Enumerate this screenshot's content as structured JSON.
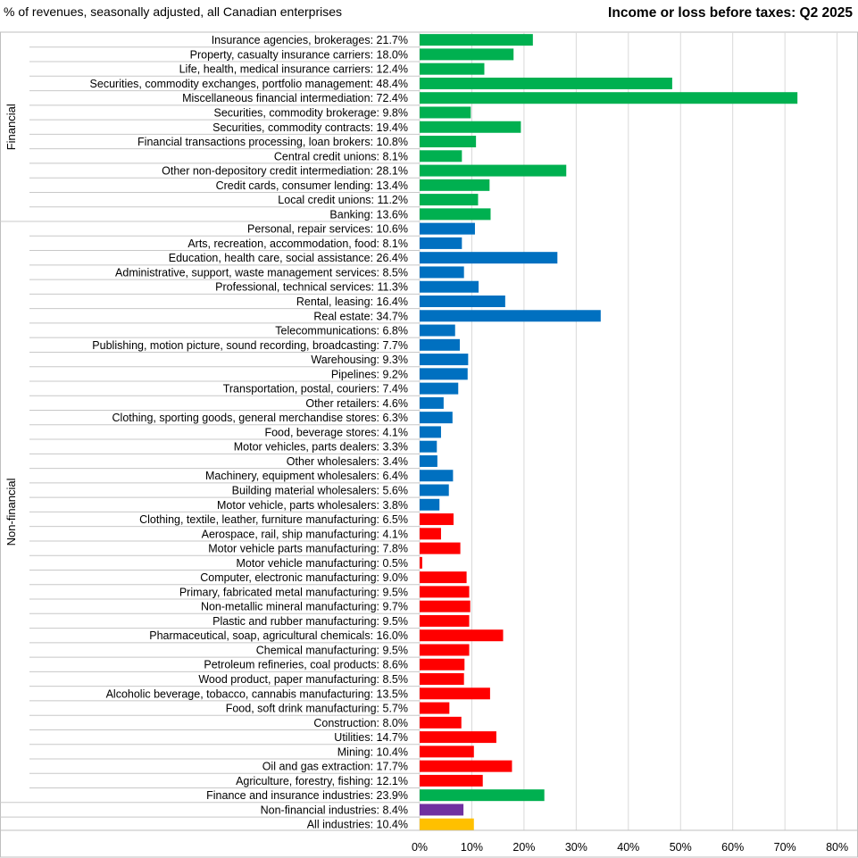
{
  "chart_data": {
    "type": "bar",
    "orientation": "horizontal",
    "title": "Income or loss before taxes: Q2 2025",
    "subtitle": "% of revenues, seasonally adjusted, all Canadian enterprises",
    "xlim": [
      0,
      80
    ],
    "xticks": [
      0,
      10,
      20,
      30,
      40,
      50,
      60,
      70,
      80
    ],
    "xtick_suffix": "%",
    "grid": "vertical",
    "groups": [
      {
        "name": "Financial",
        "start": 0,
        "end": 12
      },
      {
        "name": "Non-financial",
        "start": 13,
        "end": 52
      }
    ],
    "colors": {
      "financial": "#00b050",
      "services": "#0070c0",
      "goods": "#ff0000",
      "nonfinancial_total": "#7030a0",
      "all": "#ffc000"
    },
    "series": [
      {
        "label": "Insurance agencies, brokerages",
        "value": 21.7,
        "display": "21.7%",
        "color": "financial"
      },
      {
        "label": "Property, casualty insurance carriers",
        "value": 18.0,
        "display": "18.0%",
        "color": "financial"
      },
      {
        "label": "Life, health, medical insurance carriers",
        "value": 12.4,
        "display": "12.4%",
        "color": "financial"
      },
      {
        "label": "Securities, commodity exchanges, portfolio management",
        "value": 48.4,
        "display": "48.4%",
        "color": "financial"
      },
      {
        "label": "Miscellaneous financial intermediation",
        "value": 72.4,
        "display": "72.4%",
        "color": "financial"
      },
      {
        "label": "Securities, commodity brokerage",
        "value": 9.8,
        "display": "9.8%",
        "color": "financial"
      },
      {
        "label": "Securities, commodity contracts",
        "value": 19.4,
        "display": "19.4%",
        "color": "financial"
      },
      {
        "label": "Financial transactions processing, loan brokers",
        "value": 10.8,
        "display": "10.8%",
        "color": "financial"
      },
      {
        "label": "Central credit unions",
        "value": 8.1,
        "display": "8.1%",
        "color": "financial"
      },
      {
        "label": "Other non-depository credit intermediation",
        "value": 28.1,
        "display": "28.1%",
        "color": "financial"
      },
      {
        "label": "Credit cards, consumer lending",
        "value": 13.4,
        "display": "13.4%",
        "color": "financial"
      },
      {
        "label": "Local credit unions",
        "value": 11.2,
        "display": "11.2%",
        "color": "financial"
      },
      {
        "label": "Banking",
        "value": 13.6,
        "display": "13.6%",
        "color": "financial"
      },
      {
        "label": "Personal, repair services",
        "value": 10.6,
        "display": "10.6%",
        "color": "services"
      },
      {
        "label": "Arts, recreation, accommodation, food",
        "value": 8.1,
        "display": "8.1%",
        "color": "services"
      },
      {
        "label": "Education, health care, social assistance",
        "value": 26.4,
        "display": "26.4%",
        "color": "services"
      },
      {
        "label": "Administrative, support, waste management services",
        "value": 8.5,
        "display": "8.5%",
        "color": "services"
      },
      {
        "label": "Professional, technical services",
        "value": 11.3,
        "display": "11.3%",
        "color": "services"
      },
      {
        "label": "Rental, leasing",
        "value": 16.4,
        "display": "16.4%",
        "color": "services"
      },
      {
        "label": "Real estate",
        "value": 34.7,
        "display": "34.7%",
        "color": "services"
      },
      {
        "label": "Telecommunications",
        "value": 6.8,
        "display": "6.8%",
        "color": "services"
      },
      {
        "label": "Publishing, motion picture, sound recording, broadcasting",
        "value": 7.7,
        "display": "7.7%",
        "color": "services"
      },
      {
        "label": "Warehousing",
        "value": 9.3,
        "display": "9.3%",
        "color": "services"
      },
      {
        "label": "Pipelines",
        "value": 9.2,
        "display": "9.2%",
        "color": "services"
      },
      {
        "label": "Transportation, postal, couriers",
        "value": 7.4,
        "display": "7.4%",
        "color": "services"
      },
      {
        "label": "Other retailers",
        "value": 4.6,
        "display": "4.6%",
        "color": "services"
      },
      {
        "label": "Clothing, sporting goods, general merchandise stores",
        "value": 6.3,
        "display": "6.3%",
        "color": "services"
      },
      {
        "label": "Food, beverage stores",
        "value": 4.1,
        "display": "4.1%",
        "color": "services"
      },
      {
        "label": "Motor vehicles, parts dealers",
        "value": 3.3,
        "display": "3.3%",
        "color": "services"
      },
      {
        "label": "Other wholesalers",
        "value": 3.4,
        "display": "3.4%",
        "color": "services"
      },
      {
        "label": "Machinery, equipment wholesalers",
        "value": 6.4,
        "display": "6.4%",
        "color": "services"
      },
      {
        "label": "Building material wholesalers",
        "value": 5.6,
        "display": "5.6%",
        "color": "services"
      },
      {
        "label": "Motor vehicle, parts wholesalers",
        "value": 3.8,
        "display": "3.8%",
        "color": "services"
      },
      {
        "label": "Clothing, textile, leather, furniture manufacturing",
        "value": 6.5,
        "display": "6.5%",
        "color": "goods"
      },
      {
        "label": "Aerospace, rail, ship manufacturing",
        "value": 4.1,
        "display": "4.1%",
        "color": "goods"
      },
      {
        "label": "Motor vehicle parts manufacturing",
        "value": 7.8,
        "display": "7.8%",
        "color": "goods"
      },
      {
        "label": "Motor vehicle manufacturing",
        "value": 0.5,
        "display": "0.5%",
        "color": "goods"
      },
      {
        "label": "Computer, electronic manufacturing",
        "value": 9.0,
        "display": "9.0%",
        "color": "goods"
      },
      {
        "label": "Primary, fabricated metal manufacturing",
        "value": 9.5,
        "display": "9.5%",
        "color": "goods"
      },
      {
        "label": "Non-metallic mineral manufacturing",
        "value": 9.7,
        "display": "9.7%",
        "color": "goods"
      },
      {
        "label": "Plastic and rubber manufacturing",
        "value": 9.5,
        "display": "9.5%",
        "color": "goods"
      },
      {
        "label": "Pharmaceutical, soap, agricultural chemicals",
        "value": 16.0,
        "display": "16.0%",
        "color": "goods"
      },
      {
        "label": "Chemical manufacturing",
        "value": 9.5,
        "display": "9.5%",
        "color": "goods"
      },
      {
        "label": "Petroleum refineries, coal products",
        "value": 8.6,
        "display": "8.6%",
        "color": "goods"
      },
      {
        "label": "Wood product, paper manufacturing",
        "value": 8.5,
        "display": "8.5%",
        "color": "goods"
      },
      {
        "label": "Alcoholic beverage, tobacco, cannabis manufacturing",
        "value": 13.5,
        "display": "13.5%",
        "color": "goods"
      },
      {
        "label": "Food, soft drink manufacturing",
        "value": 5.7,
        "display": "5.7%",
        "color": "goods"
      },
      {
        "label": "Construction",
        "value": 8.0,
        "display": "8.0%",
        "color": "goods"
      },
      {
        "label": "Utilities",
        "value": 14.7,
        "display": "14.7%",
        "color": "goods"
      },
      {
        "label": "Mining",
        "value": 10.4,
        "display": "10.4%",
        "color": "goods"
      },
      {
        "label": "Oil and gas extraction",
        "value": 17.7,
        "display": "17.7%",
        "color": "goods"
      },
      {
        "label": "Agriculture, forestry, fishing",
        "value": 12.1,
        "display": "12.1%",
        "color": "goods"
      },
      {
        "label": "Finance and insurance industries",
        "value": 23.9,
        "display": "23.9%",
        "color": "financial"
      },
      {
        "label": "Non-financial industries",
        "value": 8.4,
        "display": "8.4%",
        "color": "nonfinancial_total"
      },
      {
        "label": "All industries",
        "value": 10.4,
        "display": "10.4%",
        "color": "all"
      }
    ]
  }
}
